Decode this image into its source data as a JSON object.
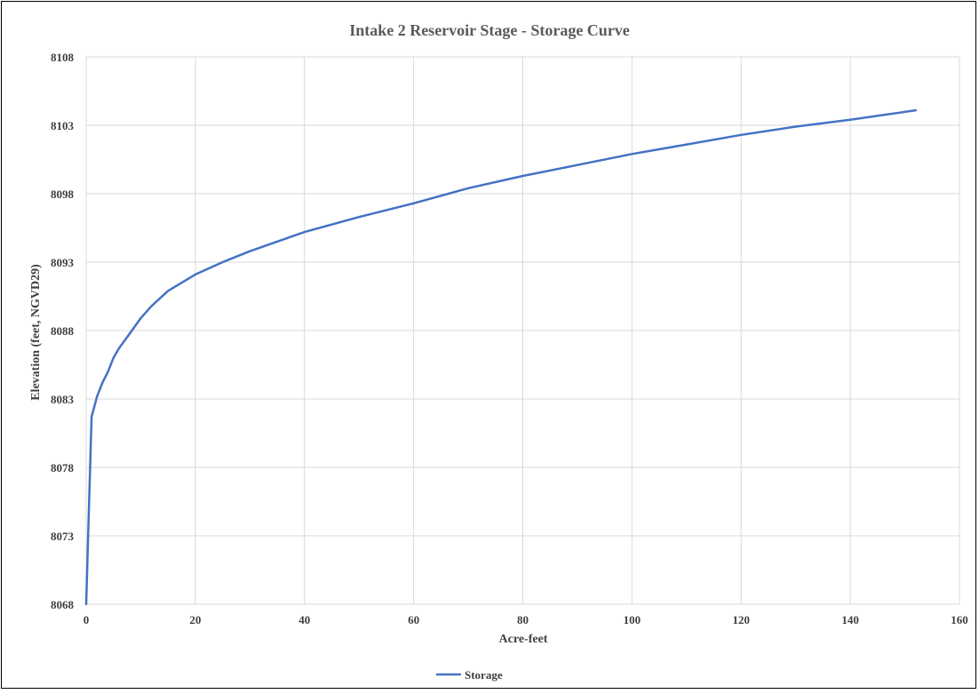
{
  "chart_data": {
    "type": "line",
    "title": "Intake 2 Reservoir Stage - Storage Curve",
    "xlabel": "Acre-feet",
    "ylabel": "Elevation (feet, NGVD29)",
    "xlim": [
      0,
      160
    ],
    "ylim": [
      8068,
      8108
    ],
    "xticks": [
      0,
      20,
      40,
      60,
      80,
      100,
      120,
      140,
      160
    ],
    "yticks": [
      8068,
      8073,
      8078,
      8083,
      8088,
      8093,
      8098,
      8103,
      8108
    ],
    "grid": true,
    "legend": "bottom",
    "series": [
      {
        "name": "Storage",
        "color": "#4472c4",
        "x": [
          0,
          0.5,
          1,
          2,
          3,
          4,
          5,
          6,
          8,
          10,
          12,
          15,
          20,
          25,
          30,
          40,
          50,
          60,
          70,
          80,
          90,
          100,
          110,
          120,
          130,
          140,
          152
        ],
        "y": [
          8068,
          8075,
          8081.7,
          8083.2,
          8084.2,
          8085,
          8086,
          8086.7,
          8087.8,
          8088.9,
          8089.8,
          8090.9,
          8092.1,
          8093,
          8093.8,
          8095.2,
          8096.3,
          8097.3,
          8098.4,
          8099.3,
          8100.1,
          8100.9,
          8101.6,
          8102.3,
          8102.9,
          8103.4,
          8104.1
        ]
      }
    ]
  }
}
